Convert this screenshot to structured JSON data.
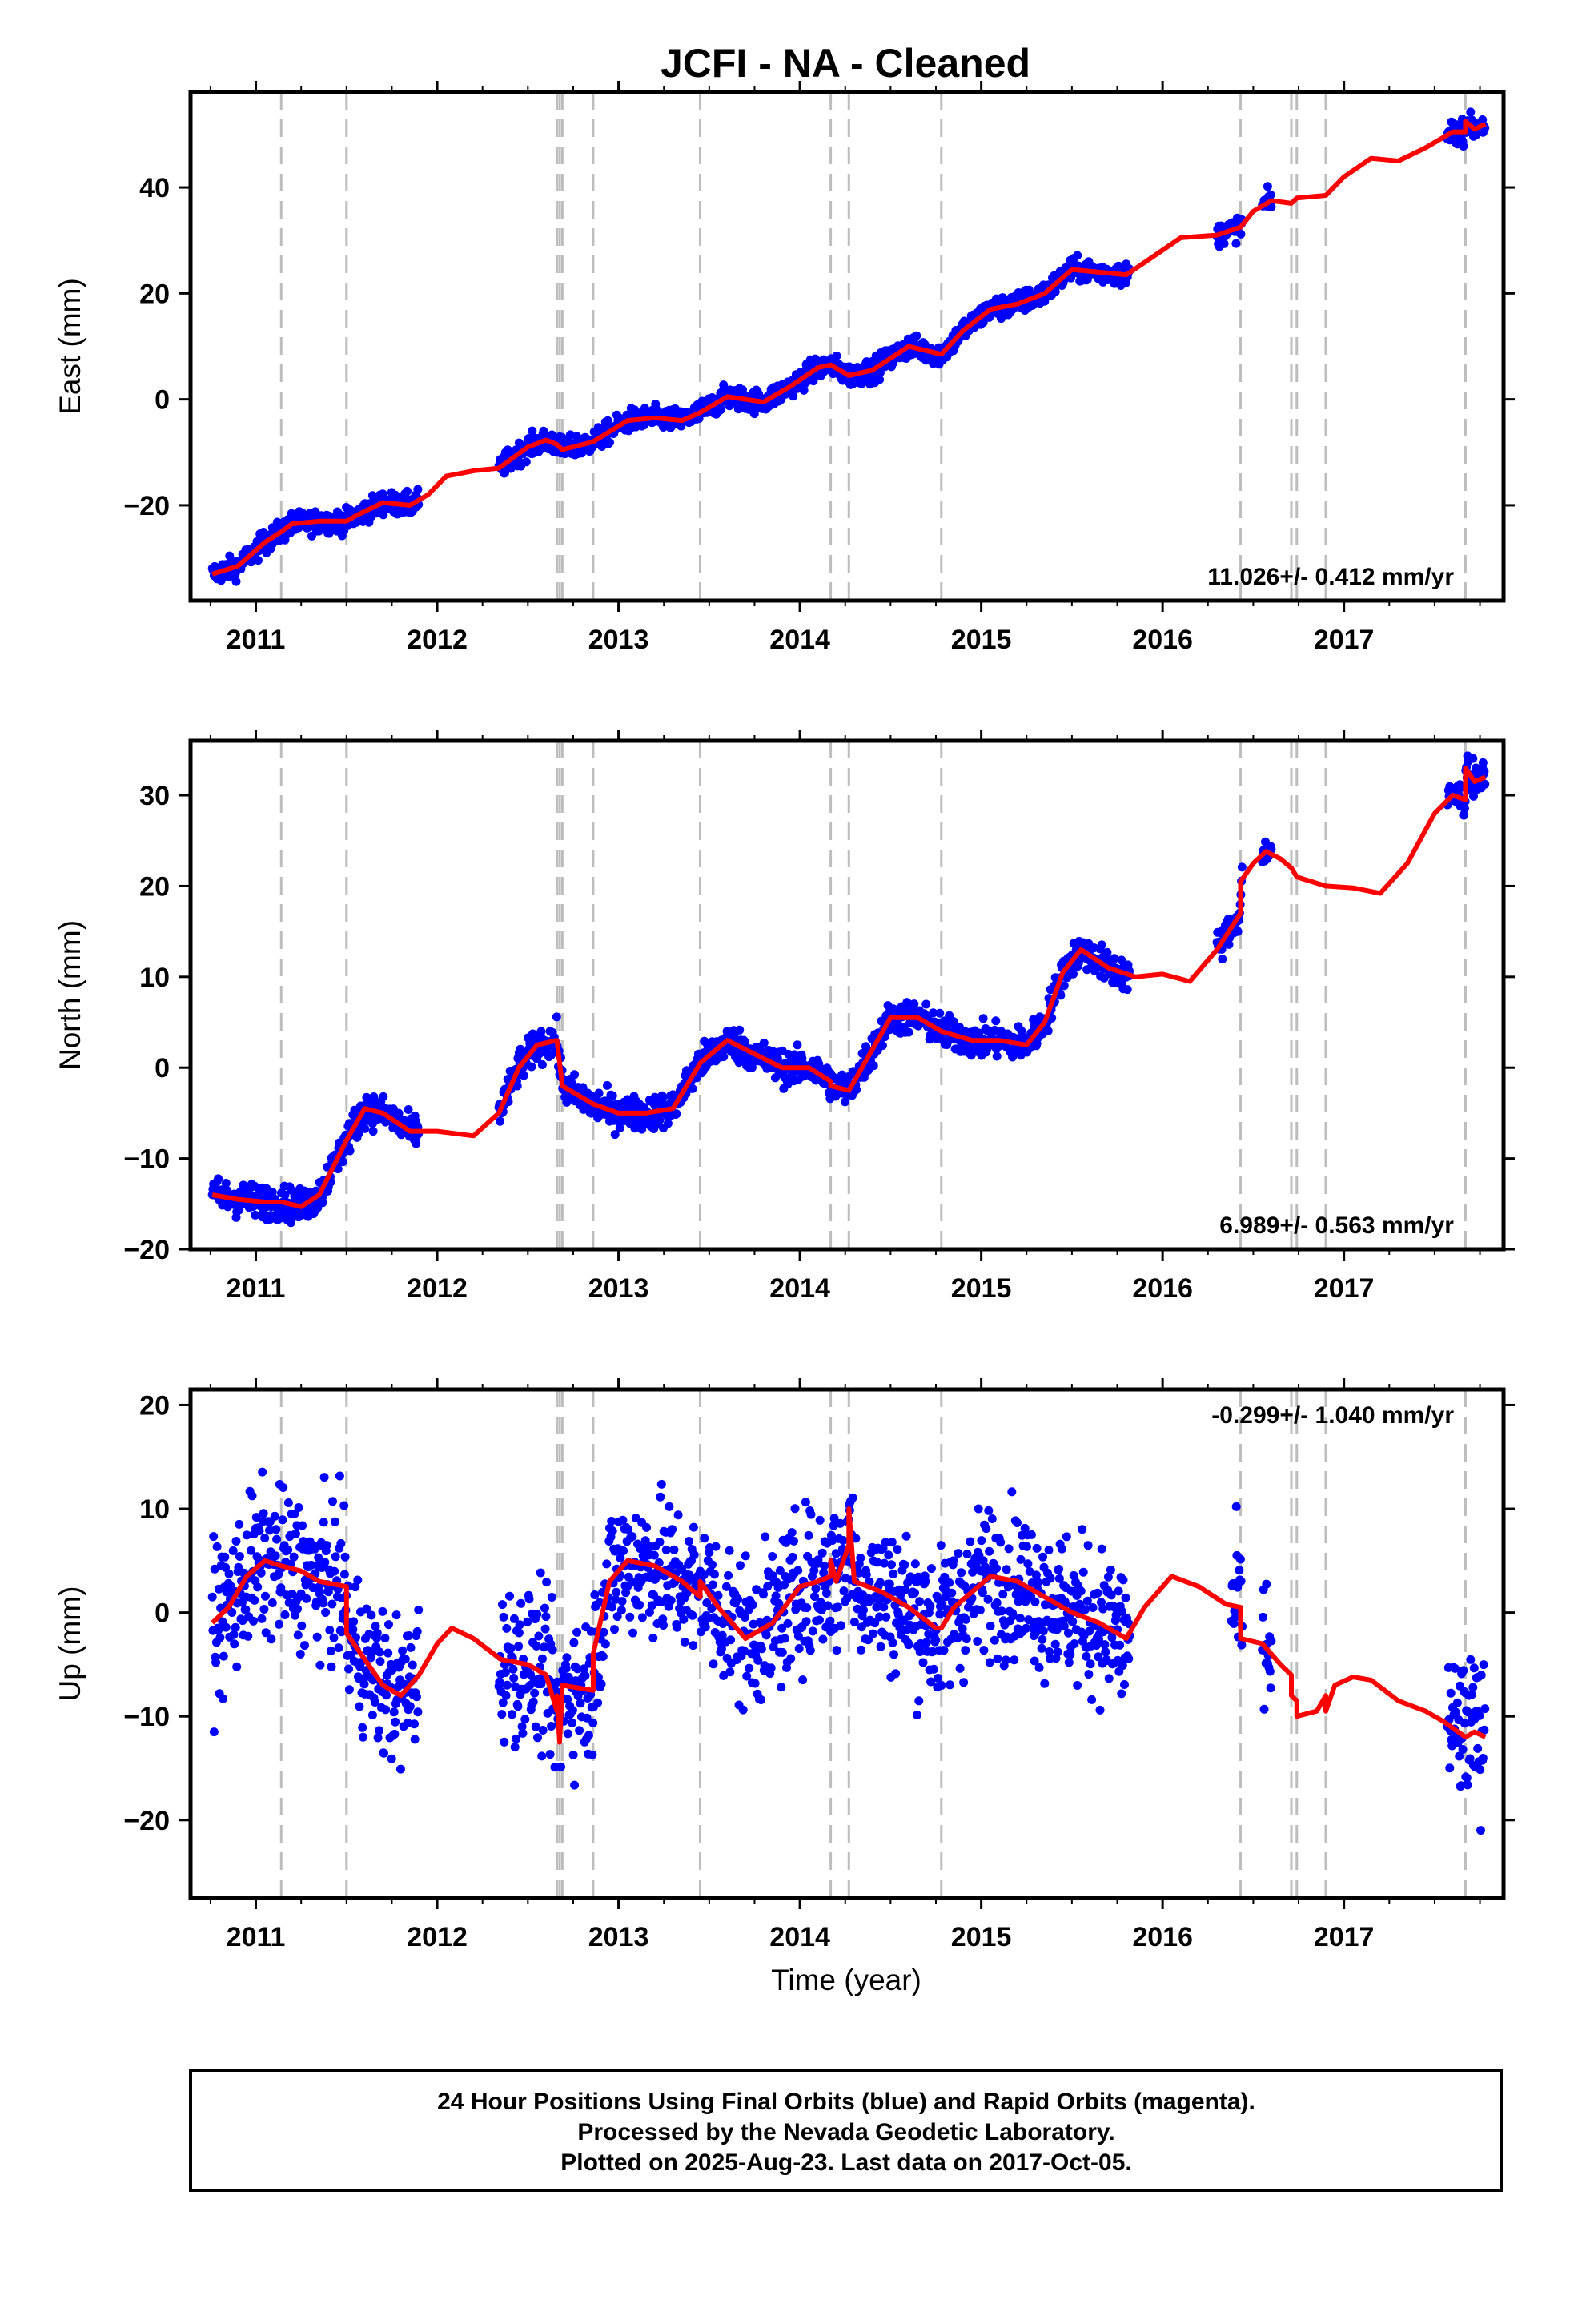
{
  "title": "JCFI  - NA - Cleaned",
  "xlabel": "Time (year)",
  "footer": [
    "24 Hour Positions Using Final Orbits (blue) and Rapid Orbits (magenta).",
    "Processed by the Nevada Geodetic Laboratory.",
    "Plotted on 2025-Aug-23. Last data on 2017-Oct-05."
  ],
  "colors": {
    "points": "#0000ff",
    "model": "#ff0000",
    "steps": "#bdbdbd",
    "frame": "#000000"
  },
  "chart_data": [
    {
      "type": "scatter",
      "ylabel": "East (mm)",
      "rate": "11.026+/- 0.412 mm/yr",
      "rate_position": "bottom-right",
      "xlim": [
        2010.64,
        2017.88
      ],
      "ylim": [
        -38,
        58
      ],
      "xticks": [
        2011,
        2012,
        2013,
        2014,
        2015,
        2016,
        2017
      ],
      "yticks": [
        -20,
        0,
        20,
        40
      ],
      "steps": [
        2011.14,
        2011.5,
        2012.66,
        2012.675,
        2012.69,
        2012.86,
        2013.45,
        2014.17,
        2014.27,
        2014.78,
        2016.43,
        2016.71,
        2016.74,
        2016.9,
        2017.67
      ],
      "segments": [
        [
          2010.76,
          2011.9
        ],
        [
          2012.34,
          2015.82
        ],
        [
          2016.3,
          2016.44
        ],
        [
          2016.55,
          2016.6
        ],
        [
          2017.57,
          2017.78
        ]
      ],
      "noise": 1.5,
      "model": [
        [
          2010.76,
          -33
        ],
        [
          2010.9,
          -31.5
        ],
        [
          2011.05,
          -27
        ],
        [
          2011.14,
          -25
        ],
        [
          2011.2,
          -23.5
        ],
        [
          2011.35,
          -23
        ],
        [
          2011.5,
          -23
        ],
        [
          2011.55,
          -22
        ],
        [
          2011.7,
          -19.5
        ],
        [
          2011.85,
          -20
        ],
        [
          2011.95,
          -18
        ],
        [
          2012.05,
          -14.5
        ],
        [
          2012.2,
          -13.5
        ],
        [
          2012.34,
          -13
        ],
        [
          2012.5,
          -9
        ],
        [
          2012.6,
          -7.7
        ],
        [
          2012.66,
          -8.5
        ],
        [
          2012.69,
          -9.5
        ],
        [
          2012.86,
          -8
        ],
        [
          2013.05,
          -4
        ],
        [
          2013.2,
          -3.5
        ],
        [
          2013.35,
          -4
        ],
        [
          2013.45,
          -2.5
        ],
        [
          2013.6,
          0.5
        ],
        [
          2013.8,
          -0.5
        ],
        [
          2013.95,
          2.5
        ],
        [
          2014.1,
          6
        ],
        [
          2014.17,
          6.5
        ],
        [
          2014.27,
          4.5
        ],
        [
          2014.4,
          5.5
        ],
        [
          2014.6,
          10
        ],
        [
          2014.78,
          8.5
        ],
        [
          2014.9,
          13
        ],
        [
          2015.05,
          17
        ],
        [
          2015.2,
          18
        ],
        [
          2015.35,
          20
        ],
        [
          2015.5,
          24.5
        ],
        [
          2015.65,
          24
        ],
        [
          2015.8,
          23.5
        ],
        [
          2015.95,
          27
        ],
        [
          2016.1,
          30.5
        ],
        [
          2016.3,
          31
        ],
        [
          2016.43,
          32.5
        ],
        [
          2016.5,
          35.5
        ],
        [
          2016.6,
          37.5
        ],
        [
          2016.71,
          37
        ],
        [
          2016.74,
          38
        ],
        [
          2016.9,
          38.5
        ],
        [
          2017.0,
          42
        ],
        [
          2017.15,
          45.5
        ],
        [
          2017.3,
          45
        ],
        [
          2017.45,
          47.5
        ],
        [
          2017.6,
          50.5
        ],
        [
          2017.67,
          50.5
        ],
        [
          2017.67,
          52.5
        ],
        [
          2017.72,
          51
        ],
        [
          2017.78,
          52
        ]
      ]
    },
    {
      "type": "scatter",
      "ylabel": "North (mm)",
      "rate": "6.989+/- 0.563 mm/yr",
      "rate_position": "bottom-right",
      "xlim": [
        2010.64,
        2017.88
      ],
      "ylim": [
        -20,
        36
      ],
      "xticks": [
        2011,
        2012,
        2013,
        2014,
        2015,
        2016,
        2017
      ],
      "yticks": [
        -20,
        -10,
        0,
        10,
        20,
        30
      ],
      "steps": [
        2011.14,
        2011.5,
        2012.66,
        2012.675,
        2012.69,
        2012.86,
        2013.45,
        2014.17,
        2014.27,
        2014.78,
        2016.43,
        2016.71,
        2016.74,
        2016.9,
        2017.67
      ],
      "segments": [
        [
          2010.76,
          2011.9
        ],
        [
          2012.34,
          2015.82
        ],
        [
          2016.3,
          2016.44
        ],
        [
          2016.55,
          2016.6
        ],
        [
          2017.57,
          2017.78
        ]
      ],
      "noise": 1.3,
      "model": [
        [
          2010.76,
          -14
        ],
        [
          2010.9,
          -14.5
        ],
        [
          2011.05,
          -14.8
        ],
        [
          2011.14,
          -14.8
        ],
        [
          2011.25,
          -15.3
        ],
        [
          2011.35,
          -14
        ],
        [
          2011.5,
          -8
        ],
        [
          2011.6,
          -4.5
        ],
        [
          2011.7,
          -5
        ],
        [
          2011.85,
          -7
        ],
        [
          2012.0,
          -7
        ],
        [
          2012.2,
          -7.5
        ],
        [
          2012.34,
          -5
        ],
        [
          2012.45,
          0
        ],
        [
          2012.55,
          2.5
        ],
        [
          2012.66,
          3
        ],
        [
          2012.69,
          -2
        ],
        [
          2012.86,
          -4
        ],
        [
          2013.0,
          -5
        ],
        [
          2013.15,
          -5
        ],
        [
          2013.3,
          -4.5
        ],
        [
          2013.45,
          0.5
        ],
        [
          2013.6,
          3
        ],
        [
          2013.75,
          1.5
        ],
        [
          2013.9,
          0
        ],
        [
          2014.05,
          0
        ],
        [
          2014.17,
          -1.5
        ],
        [
          2014.17,
          -2
        ],
        [
          2014.27,
          -2.5
        ],
        [
          2014.4,
          2
        ],
        [
          2014.5,
          5.5
        ],
        [
          2014.65,
          5.5
        ],
        [
          2014.78,
          4
        ],
        [
          2014.95,
          3
        ],
        [
          2015.1,
          3
        ],
        [
          2015.25,
          2.5
        ],
        [
          2015.35,
          5
        ],
        [
          2015.45,
          10.5
        ],
        [
          2015.55,
          13
        ],
        [
          2015.7,
          11
        ],
        [
          2015.85,
          10
        ],
        [
          2016.0,
          10.3
        ],
        [
          2016.15,
          9.5
        ],
        [
          2016.3,
          13
        ],
        [
          2016.43,
          17
        ],
        [
          2016.43,
          20.5
        ],
        [
          2016.5,
          22.5
        ],
        [
          2016.57,
          23.8
        ],
        [
          2016.65,
          23
        ],
        [
          2016.71,
          22
        ],
        [
          2016.74,
          21
        ],
        [
          2016.9,
          20
        ],
        [
          2017.05,
          19.8
        ],
        [
          2017.2,
          19.2
        ],
        [
          2017.35,
          22.5
        ],
        [
          2017.5,
          28
        ],
        [
          2017.6,
          30
        ],
        [
          2017.67,
          29.5
        ],
        [
          2017.67,
          33
        ],
        [
          2017.72,
          31.5
        ],
        [
          2017.78,
          32
        ]
      ]
    },
    {
      "type": "scatter",
      "ylabel": "Up (mm)",
      "rate": "-0.299+/- 1.040 mm/yr",
      "rate_position": "top-right",
      "xlim": [
        2010.64,
        2017.88
      ],
      "ylim": [
        -27.5,
        21.5
      ],
      "xticks": [
        2011,
        2012,
        2013,
        2014,
        2015,
        2016,
        2017
      ],
      "yticks": [
        -20,
        -10,
        0,
        10,
        20
      ],
      "steps": [
        2011.14,
        2011.5,
        2012.66,
        2012.675,
        2012.69,
        2012.86,
        2013.45,
        2014.17,
        2014.27,
        2014.78,
        2016.43,
        2016.71,
        2016.74,
        2016.9,
        2017.67
      ],
      "segments": [
        [
          2010.76,
          2011.9
        ],
        [
          2012.34,
          2015.82
        ],
        [
          2016.38,
          2016.44
        ],
        [
          2016.55,
          2016.6
        ],
        [
          2017.57,
          2017.78
        ]
      ],
      "noise": 5.0,
      "model": [
        [
          2010.76,
          -1
        ],
        [
          2010.85,
          0.5
        ],
        [
          2010.95,
          3.5
        ],
        [
          2011.05,
          5
        ],
        [
          2011.14,
          4.5
        ],
        [
          2011.25,
          4
        ],
        [
          2011.35,
          3
        ],
        [
          2011.5,
          2.5
        ],
        [
          2011.5,
          -2
        ],
        [
          2011.6,
          -4.5
        ],
        [
          2011.7,
          -7
        ],
        [
          2011.8,
          -8
        ],
        [
          2011.9,
          -6
        ],
        [
          2012.0,
          -3
        ],
        [
          2012.08,
          -1.5
        ],
        [
          2012.2,
          -2.5
        ],
        [
          2012.35,
          -4.5
        ],
        [
          2012.5,
          -5
        ],
        [
          2012.6,
          -6
        ],
        [
          2012.66,
          -9.5
        ],
        [
          2012.66,
          -8
        ],
        [
          2012.675,
          -12.5
        ],
        [
          2012.69,
          -7
        ],
        [
          2012.86,
          -7.5
        ],
        [
          2012.86,
          -4
        ],
        [
          2012.95,
          3
        ],
        [
          2013.05,
          5
        ],
        [
          2013.2,
          4.5
        ],
        [
          2013.35,
          3
        ],
        [
          2013.45,
          1.5
        ],
        [
          2013.45,
          3
        ],
        [
          2013.55,
          0.5
        ],
        [
          2013.7,
          -2.5
        ],
        [
          2013.85,
          -1
        ],
        [
          2014.0,
          2.5
        ],
        [
          2014.1,
          3
        ],
        [
          2014.17,
          3.5
        ],
        [
          2014.17,
          5
        ],
        [
          2014.2,
          3
        ],
        [
          2014.27,
          6.5
        ],
        [
          2014.27,
          10
        ],
        [
          2014.3,
          3
        ],
        [
          2014.45,
          2
        ],
        [
          2014.6,
          0.5
        ],
        [
          2014.75,
          -1.5
        ],
        [
          2014.78,
          -1.5
        ],
        [
          2014.85,
          0.5
        ],
        [
          2014.95,
          2
        ],
        [
          2015.05,
          3.5
        ],
        [
          2015.2,
          3
        ],
        [
          2015.35,
          1.5
        ],
        [
          2015.5,
          0
        ],
        [
          2015.65,
          -1
        ],
        [
          2015.8,
          -2.5
        ],
        [
          2015.9,
          0.5
        ],
        [
          2016.05,
          3.5
        ],
        [
          2016.2,
          2.5
        ],
        [
          2016.35,
          0.8
        ],
        [
          2016.43,
          0.5
        ],
        [
          2016.43,
          -2.5
        ],
        [
          2016.55,
          -3
        ],
        [
          2016.65,
          -5
        ],
        [
          2016.71,
          -6
        ],
        [
          2016.71,
          -8
        ],
        [
          2016.74,
          -8.5
        ],
        [
          2016.74,
          -10
        ],
        [
          2016.85,
          -9.5
        ],
        [
          2016.9,
          -8
        ],
        [
          2016.9,
          -9.5
        ],
        [
          2016.95,
          -7
        ],
        [
          2017.05,
          -6.2
        ],
        [
          2017.15,
          -6.5
        ],
        [
          2017.3,
          -8.5
        ],
        [
          2017.45,
          -9.5
        ],
        [
          2017.55,
          -10.5
        ],
        [
          2017.67,
          -12
        ],
        [
          2017.72,
          -11.5
        ],
        [
          2017.78,
          -12
        ]
      ]
    }
  ]
}
